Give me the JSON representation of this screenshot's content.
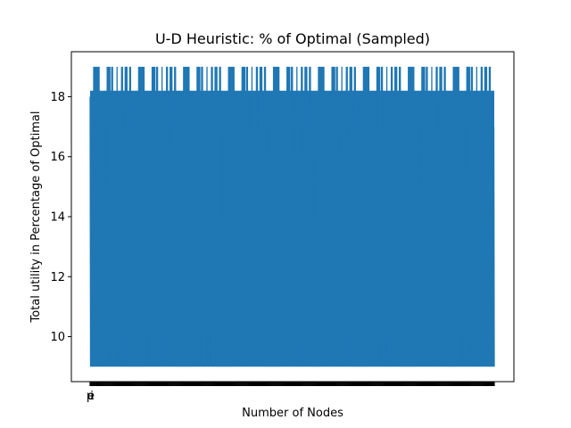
{
  "chart_data": {
    "type": "line",
    "title": "U-D Heuristic: % of Optimal (Sampled)",
    "xlabel": "Number of Nodes",
    "ylabel": "Total utility in Percentage of Optimal",
    "ylim": [
      8.5,
      19.5
    ],
    "yticks": [
      10,
      12,
      14,
      16,
      18
    ],
    "x_tick_labels_visible": [
      "p",
      "e",
      "i"
    ],
    "grid": false,
    "legend": "none",
    "color": "#1f77b4",
    "series": [
      {
        "values_note_free": true,
        "y_min": 9,
        "y_max": 19,
        "values": [
          9,
          19,
          9,
          18,
          9,
          17,
          10,
          19,
          9,
          18,
          9,
          19,
          9,
          17,
          9,
          19,
          9,
          18,
          10,
          19,
          9,
          16,
          9,
          19,
          9,
          18,
          9,
          17,
          9,
          19,
          10,
          18,
          9,
          19,
          9,
          17,
          9,
          18,
          9,
          19,
          9,
          15,
          9,
          19,
          9,
          18,
          9,
          17,
          9,
          19,
          9,
          18,
          9,
          19,
          9,
          17,
          10,
          18,
          9,
          19,
          9,
          16,
          9,
          19,
          9,
          18,
          9,
          17,
          9,
          19,
          9,
          18,
          9,
          19,
          9,
          14,
          9,
          19,
          9,
          18,
          9,
          17,
          9,
          19,
          9,
          18,
          10,
          19,
          9,
          17,
          9,
          18,
          9,
          19,
          9,
          16,
          9,
          19,
          9,
          18
        ]
      }
    ]
  }
}
